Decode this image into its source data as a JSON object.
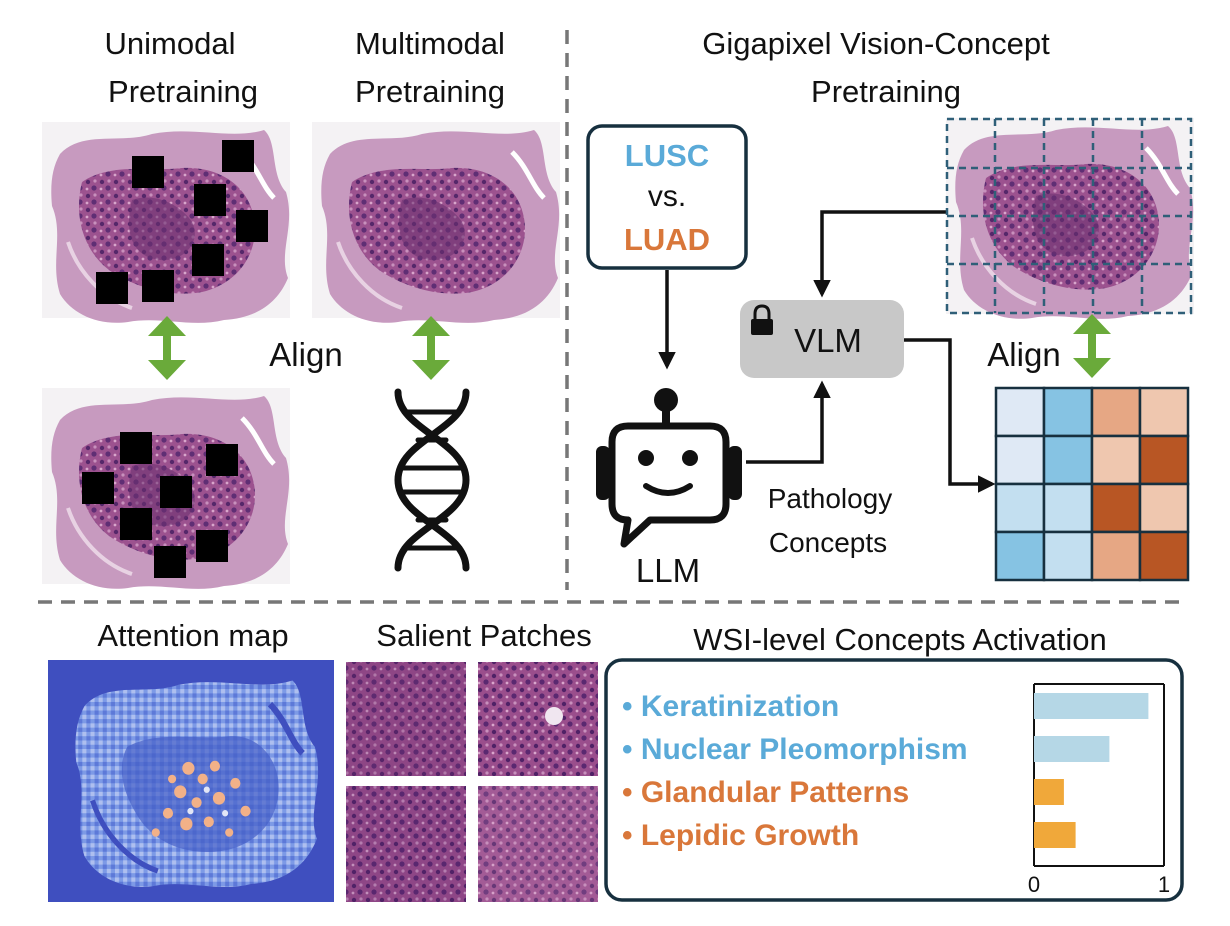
{
  "colors": {
    "blue": "#5aaad8",
    "orange": "#d9773a",
    "arrow_green": "#6aaa3a",
    "tissue": "#a0588f",
    "tissue_dark": "#6a2f70",
    "attention_bg": "#3f4fbf",
    "bar_blue": "#b5d7e6",
    "bar_orange": "#f0a83a",
    "grid_dash": "#2f5f78"
  },
  "top_left": {
    "unimodal_title": [
      "Unimodal",
      "Pretraining"
    ],
    "multimodal_title": [
      "Multimodal",
      "Pretraining"
    ],
    "align_label": "Align",
    "icons": [
      "dna-icon"
    ]
  },
  "top_right": {
    "title": [
      "Gigapixel Vision-Concept",
      "Pretraining"
    ],
    "class_box": {
      "line1": "LUSC",
      "line2": "vs.",
      "line3": "LUAD"
    },
    "llm_label": "LLM",
    "vlm_label": "VLM",
    "concepts_label": [
      "Pathology",
      "Concepts"
    ],
    "align_label": "Align",
    "icons": [
      "robot-icon",
      "lock-icon"
    ],
    "similarity_matrix": [
      [
        "#dfe9f5",
        "#86c3e3",
        "#e6a784",
        "#efc7af"
      ],
      [
        "#dfe9f5",
        "#86c3e3",
        "#efc7af",
        "#b85624"
      ],
      [
        "#c3dff0",
        "#c3dff0",
        "#b85624",
        "#efc7af"
      ],
      [
        "#86c3e3",
        "#c3dff0",
        "#e6a784",
        "#b85624"
      ]
    ]
  },
  "bottom": {
    "attention_title": "Attention map",
    "patches_title": "Salient Patches",
    "activation_title": "WSI-level Concepts Activation"
  },
  "chart_data": {
    "type": "bar",
    "orientation": "horizontal",
    "categories": [
      "Keratinization",
      "Nuclear Pleomorphism",
      "Glandular Patterns",
      "Lepidic Growth"
    ],
    "values": [
      0.88,
      0.58,
      0.23,
      0.32
    ],
    "category_colors": [
      "blue",
      "blue",
      "orange",
      "orange"
    ],
    "xlim": [
      0,
      1
    ],
    "xticks": [
      "0",
      "1"
    ],
    "title": "WSI-level Concepts Activation",
    "xlabel": "",
    "ylabel": ""
  }
}
